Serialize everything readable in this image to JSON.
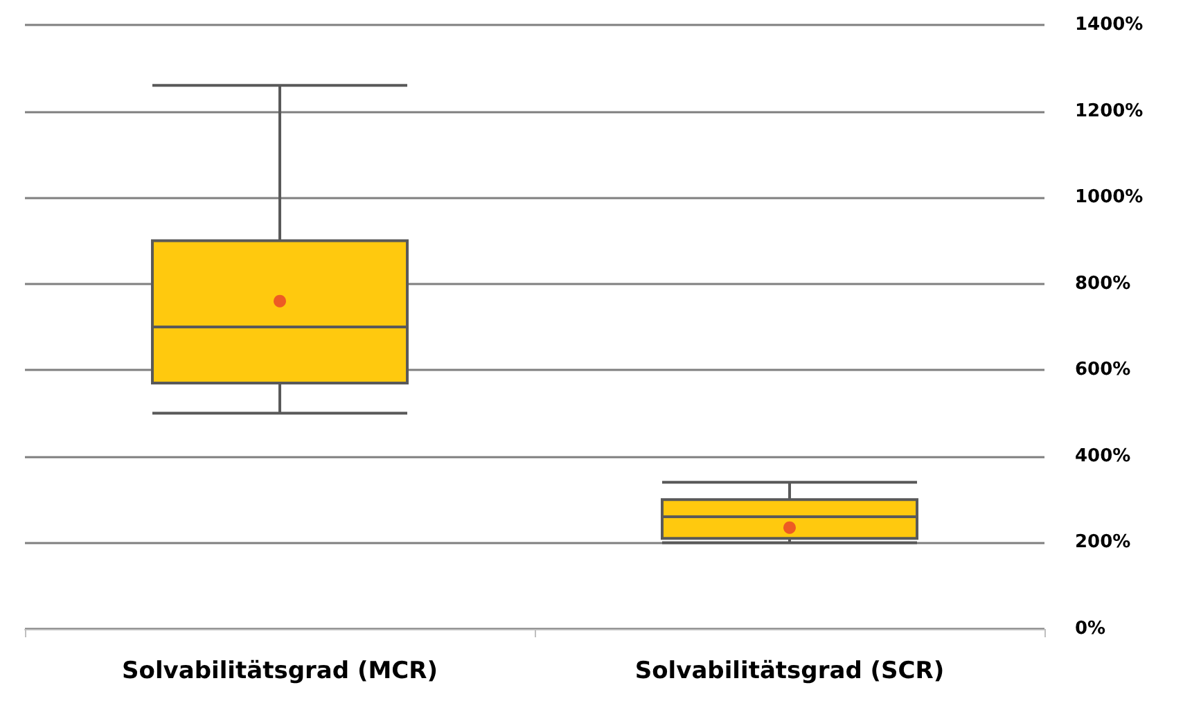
{
  "chart_data": {
    "type": "box",
    "categories": [
      "Solvabilitätsgrad (MCR)",
      "Solvabilitätsgrad (SCR)"
    ],
    "boxes": [
      {
        "low": 500,
        "q1": 570,
        "median": 700,
        "q3": 900,
        "high": 1260,
        "mean": 760
      },
      {
        "low": 200,
        "q1": 210,
        "median": 260,
        "q3": 300,
        "high": 340,
        "mean": 235
      }
    ],
    "color": "#ffc90e",
    "ylim": [
      0,
      1400
    ],
    "yticks": [
      {
        "value": 0,
        "label": "0%"
      },
      {
        "value": 200,
        "label": "200%"
      },
      {
        "value": 400,
        "label": "400%"
      },
      {
        "value": 600,
        "label": "600%"
      },
      {
        "value": 800,
        "label": "800%"
      },
      {
        "value": 1000,
        "label": "1000%"
      },
      {
        "value": 1200,
        "label": "1200%"
      },
      {
        "value": 1400,
        "label": "1400%"
      }
    ],
    "grid": "y"
  }
}
